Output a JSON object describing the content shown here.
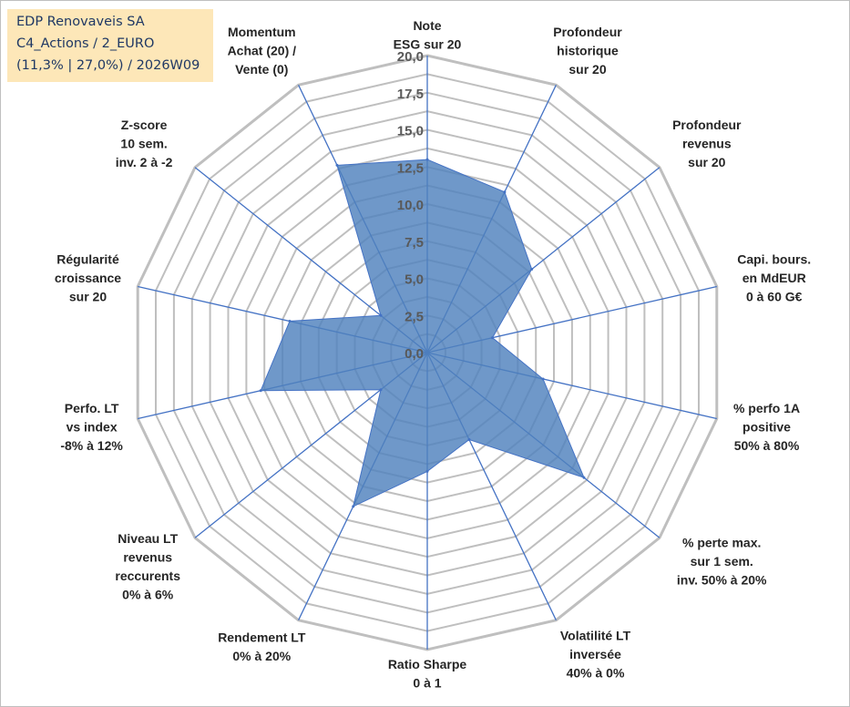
{
  "header": {
    "line1": "EDP Renovaveis SA",
    "line2": "C4_Actions / 2_EURO",
    "line3": "(11,3% | 27,0%) / 2026W09"
  },
  "chart_data": {
    "type": "radar",
    "title": "EDP Renovaveis SA",
    "rmax": 20,
    "ticks": [
      "0,0",
      "2,5",
      "5,0",
      "7,5",
      "10,0",
      "12,5",
      "15,0",
      "17,5",
      "20,0"
    ],
    "tick_values": [
      0,
      2.5,
      5,
      7.5,
      10,
      12.5,
      15,
      17.5,
      20
    ],
    "grid_rings": [
      0,
      1.25,
      2.5,
      3.75,
      5,
      6.25,
      7.5,
      8.75,
      10,
      11.25,
      12.5,
      13.75,
      15,
      16.25,
      17.5,
      18.75,
      20
    ],
    "axes": [
      {
        "label": [
          "Note",
          "ESG sur 20"
        ],
        "value": 13.0
      },
      {
        "label": [
          "Profondeur",
          "historique",
          "sur 20"
        ],
        "value": 12.0
      },
      {
        "label": [
          "Profondeur",
          "revenus",
          "sur 20"
        ],
        "value": 9.0
      },
      {
        "label": [
          "Capi. bours.",
          "en MdEUR",
          "0 à 60 G€"
        ],
        "value": 4.5
      },
      {
        "label": [
          "% perfo 1A",
          "positive",
          "50% à 80%"
        ],
        "value": 8.0
      },
      {
        "label": [
          "% perte max.",
          "sur 1 sem.",
          "inv. 50% à 20%"
        ],
        "value": 13.5
      },
      {
        "label": [
          "Volatilité LT",
          "inversée",
          "40% à 0%"
        ],
        "value": 6.5
      },
      {
        "label": [
          "Ratio Sharpe",
          "0 à 1"
        ],
        "value": 8.0
      },
      {
        "label": [
          "Rendement LT",
          "0% à 20%"
        ],
        "value": 11.5
      },
      {
        "label": [
          "Niveau LT",
          "revenus",
          "reccurents",
          "0% à 6%"
        ],
        "value": 4.0
      },
      {
        "label": [
          "Perfo. LT",
          "vs index",
          "-8% à 12%"
        ],
        "value": 11.5
      },
      {
        "label": [
          "Régularité",
          "croissance",
          "sur 20"
        ],
        "value": 9.5
      },
      {
        "label": [
          "Z-score",
          "10 sem.",
          "inv. 2 à -2"
        ],
        "value": 4.0
      },
      {
        "label": [
          "Momentum",
          "Achat (20) /",
          "Vente (0)"
        ],
        "value": 14.0
      }
    ],
    "colors": {
      "fill": "#4f81bd",
      "axis": "#4472c4",
      "grid": "#bfbfbf",
      "title_bg": "#fde7b8",
      "title_text": "#1f3864"
    }
  }
}
